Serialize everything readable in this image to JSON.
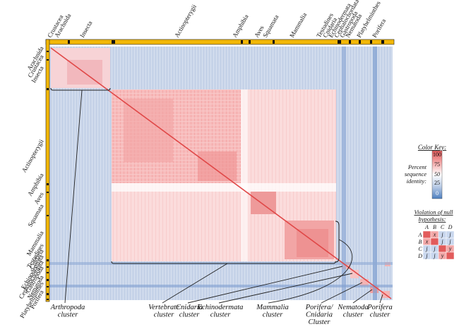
{
  "top_labels": [
    "Crustacea",
    "Arachnida",
    "Insecta",
    "Actinopterygii",
    "Amphibia",
    "Aves",
    "Squamata",
    "Mammalia",
    "Testudines",
    "Cnidaria",
    "Echinodermata",
    "Cephalochordata",
    "Gastropoda",
    "Nematoda",
    "Platyhelminthes",
    "Porifera"
  ],
  "left_labels": [
    "Arachnida",
    "Crustacea",
    "Insecta",
    "Actinopterygii",
    "Amphibia",
    "Aves",
    "Squamata",
    "Mammalia",
    "Testudines",
    "Cnidaria",
    "Echinodermata",
    "Cephalochordata",
    "Gastropoda",
    "Nematoda",
    "Platyhelminthes",
    "Porifera"
  ],
  "clusters": [
    {
      "line1": "Arthropoda",
      "line2": "cluster"
    },
    {
      "line1": "Vertebrate",
      "line2": "cluster"
    },
    {
      "line1": "Cnidaria",
      "line2": "cluster"
    },
    {
      "line1": "Echinodermata",
      "line2": "cluster"
    },
    {
      "line1": "Mammalia",
      "line2": "cluster"
    },
    {
      "line1": "Porifera/",
      "line2": "Cnidaria",
      "line3": "Cluster"
    },
    {
      "line1": "Nematoda",
      "line2": "cluster"
    },
    {
      "line1": "Porifera",
      "line2": "cluster"
    }
  ],
  "color_key": {
    "title": "Color Key:",
    "ticks": [
      "100",
      "75",
      "50",
      "25",
      "0"
    ],
    "label_lines": [
      "Percent",
      "sequence",
      "identity:"
    ],
    "colors": [
      "#e25b5b",
      "#f3a8a8",
      "#ffffff",
      "#b9cbe6",
      "#4d7fbf"
    ]
  },
  "violation": {
    "title_lines": [
      "Violation of null",
      "hypothesis:"
    ],
    "headers": [
      "A",
      "B",
      "C",
      "D"
    ],
    "cells": [
      [
        "",
        "x",
        "j",
        "j"
      ],
      [
        "x",
        "",
        "j",
        "j"
      ],
      [
        "j",
        "j",
        "",
        "y"
      ],
      [
        "j",
        "j",
        "y",
        ""
      ]
    ]
  },
  "palette": {
    "frame_yellow": "#f2b705",
    "red_strong": "#e04848",
    "red_mid": "#f6b3b3",
    "red_light": "#fbd9d9",
    "blue_light": "#cdd9ec",
    "blue_mid": "#a9bfe0",
    "blue_dark": "#5e88c4"
  }
}
